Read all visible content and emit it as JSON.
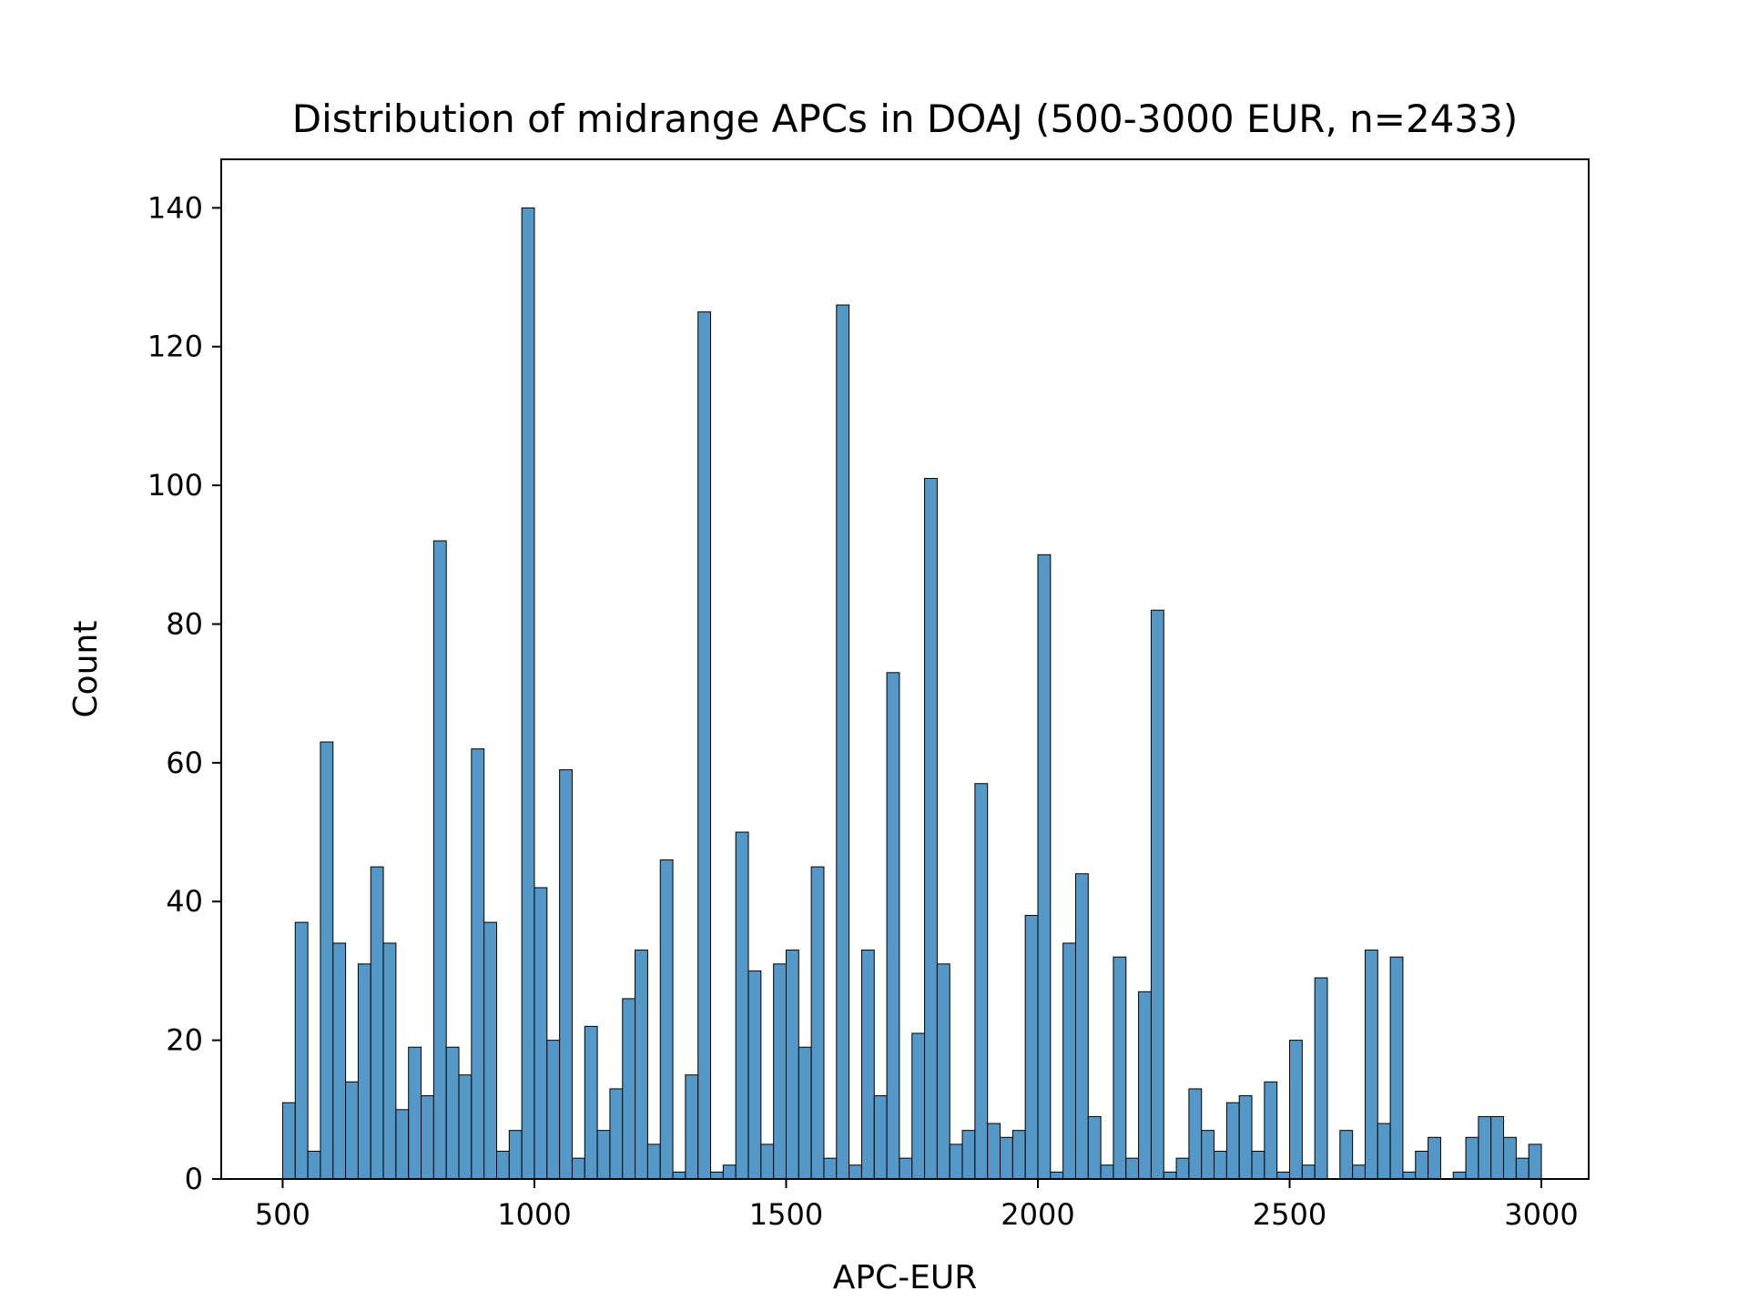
{
  "chart_data": {
    "type": "bar",
    "title": "Distribution of midrange APCs in DOAJ (500-3000 EUR, n=2433)",
    "xlabel": "APC-EUR",
    "ylabel": "Count",
    "xlim": [
      378,
      3094
    ],
    "ylim": [
      0,
      147
    ],
    "xticks": [
      500,
      1000,
      1500,
      2000,
      2500,
      3000
    ],
    "xtick_labels": [
      "500",
      "1000",
      "1500",
      "2000",
      "2500",
      "3000"
    ],
    "yticks": [
      0,
      20,
      40,
      60,
      80,
      100,
      120,
      140
    ],
    "ytick_labels": [
      "0",
      "20",
      "40",
      "60",
      "80",
      "100",
      "120",
      "140"
    ],
    "bin_start": 500,
    "bin_width": 25,
    "values": [
      11,
      37,
      4,
      63,
      34,
      14,
      31,
      45,
      34,
      10,
      19,
      12,
      92,
      19,
      15,
      62,
      37,
      4,
      7,
      140,
      42,
      20,
      59,
      3,
      22,
      7,
      13,
      26,
      33,
      5,
      46,
      1,
      15,
      125,
      1,
      2,
      50,
      30,
      5,
      31,
      33,
      19,
      45,
      3,
      126,
      2,
      33,
      12,
      73,
      3,
      21,
      101,
      31,
      5,
      7,
      57,
      8,
      6,
      7,
      38,
      90,
      1,
      34,
      44,
      9,
      2,
      32,
      3,
      27,
      82,
      1,
      3,
      13,
      7,
      4,
      11,
      12,
      4,
      14,
      1,
      20,
      2,
      29,
      0,
      7,
      2,
      33,
      8,
      32,
      1,
      4,
      6,
      0,
      1,
      6,
      9,
      9,
      6,
      3,
      5
    ],
    "bar_color": "#5597c6",
    "edge_color": "#000000",
    "grid": false
  }
}
